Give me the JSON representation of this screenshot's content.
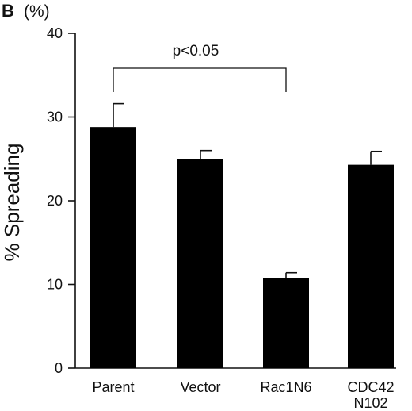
{
  "chart_data": {
    "type": "bar",
    "panel_label": "B",
    "y_unit": "(%)",
    "ylabel": "% Spreading",
    "xlabel": "",
    "title": "",
    "categories": [
      {
        "line1": "Parent",
        "line2": ""
      },
      {
        "line1": "Vector",
        "line2": ""
      },
      {
        "line1": "Rac1N6",
        "line2": ""
      },
      {
        "line1": "CDC42",
        "line2": "N102"
      }
    ],
    "values": [
      28.8,
      25.0,
      10.8,
      24.3
    ],
    "errors": [
      2.8,
      1.0,
      0.6,
      1.6
    ],
    "ylim": [
      0,
      40
    ],
    "yticks": [
      0,
      10,
      20,
      30,
      40
    ],
    "grid": false,
    "bar_color": "#000000",
    "significance": {
      "from": 0,
      "to": 2,
      "label": "p<0.05"
    }
  }
}
